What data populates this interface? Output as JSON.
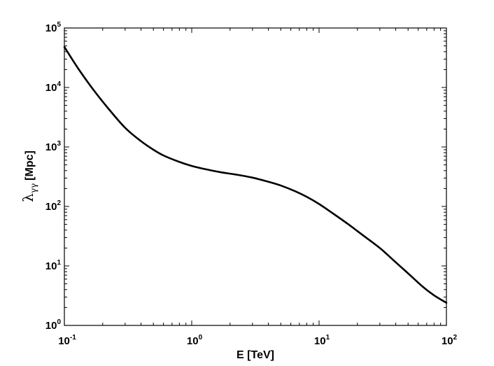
{
  "chart_data": {
    "type": "line",
    "title": "",
    "xlabel": "E [TeV]",
    "ylabel_symbol": "λ",
    "ylabel_subscript": "γγ",
    "ylabel_unit": "[Mpc]",
    "xscale": "log",
    "yscale": "log",
    "xlim": [
      0.1,
      100
    ],
    "ylim": [
      1,
      100000
    ],
    "grid": false,
    "legend": "none",
    "line_color": "#000000",
    "x_ticks": [
      {
        "value": 0.1,
        "base": "10",
        "exp": "-1"
      },
      {
        "value": 1,
        "base": "10",
        "exp": "0"
      },
      {
        "value": 10,
        "base": "10",
        "exp": "1"
      },
      {
        "value": 100,
        "base": "10",
        "exp": "2"
      }
    ],
    "y_ticks": [
      {
        "value": 1,
        "base": "10",
        "exp": "0"
      },
      {
        "value": 10,
        "base": "10",
        "exp": "1"
      },
      {
        "value": 100,
        "base": "10",
        "exp": "2"
      },
      {
        "value": 1000,
        "base": "10",
        "exp": "3"
      },
      {
        "value": 10000,
        "base": "10",
        "exp": "4"
      },
      {
        "value": 100000,
        "base": "10",
        "exp": "5"
      }
    ],
    "series": [
      {
        "x": [
          0.1,
          0.13,
          0.17,
          0.22,
          0.3,
          0.4,
          0.5,
          0.6,
          0.8,
          1.0,
          1.3,
          1.7,
          2.2,
          3.0,
          4.0,
          5.0,
          6.5,
          8.0,
          10,
          13,
          17,
          22,
          30,
          40,
          50,
          65,
          80,
          100
        ],
        "y": [
          48000,
          20000,
          9000,
          4500,
          2100,
          1250,
          900,
          720,
          560,
          480,
          420,
          375,
          345,
          305,
          260,
          225,
          180,
          145,
          110,
          75,
          50,
          33,
          20,
          11.5,
          7.5,
          4.5,
          3.2,
          2.4
        ]
      }
    ]
  }
}
